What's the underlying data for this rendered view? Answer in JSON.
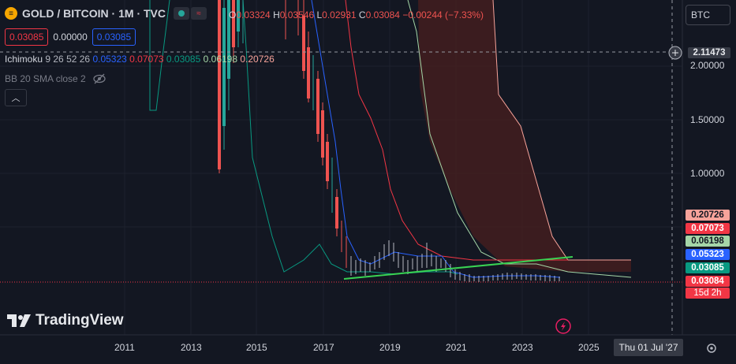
{
  "header": {
    "symbol": "GOLD / BITCOIN · 1M · TVC",
    "open_label": "O",
    "open": "0.03324",
    "high_label": "H",
    "high": "0.03546",
    "low_label": "L",
    "low": "0.02931",
    "close_label": "C",
    "close": "0.03084",
    "change": "−0.00244 (−7.33%)",
    "sell_price": "0.03085",
    "spread": "0.00000",
    "buy_price": "0.03085"
  },
  "indicators": {
    "ichimoku_name": "Ichimoku",
    "ichimoku_params": "9 26 52 26",
    "ichimoku_values": [
      "0.05323",
      "0.07073",
      "0.03085",
      "0.06198",
      "0.20726"
    ],
    "bb_label": "BB 20 SMA close 2"
  },
  "price_axis": {
    "currency": "BTC",
    "crosshair_value": "2.11473",
    "labels": [
      "2.00000",
      "1.50000",
      "1.00000"
    ],
    "tags": [
      {
        "value": "0.20726",
        "bg": "#f7a39a",
        "fg": "#131722"
      },
      {
        "value": "0.07073",
        "bg": "#f23645",
        "fg": "#ffffff"
      },
      {
        "value": "0.06198",
        "bg": "#a5d6a7",
        "fg": "#131722"
      },
      {
        "value": "0.05323",
        "bg": "#2962ff",
        "fg": "#ffffff"
      },
      {
        "value": "0.03085",
        "bg": "#089981",
        "fg": "#ffffff"
      },
      {
        "value": "0.03084",
        "bg": "#f23645",
        "fg": "#ffffff"
      }
    ],
    "countdown": "15d 2h"
  },
  "time_axis": {
    "labels": [
      "2011",
      "2013",
      "2015",
      "2017",
      "2019",
      "2021",
      "2023",
      "2025"
    ],
    "crosshair_date": "Thu 01 Jul '27"
  },
  "brand": "TradingView",
  "colors": {
    "background": "#131722",
    "red": "#f23645",
    "green": "#089981",
    "blue": "#2962ff",
    "cloud": "#4a1f1f"
  }
}
